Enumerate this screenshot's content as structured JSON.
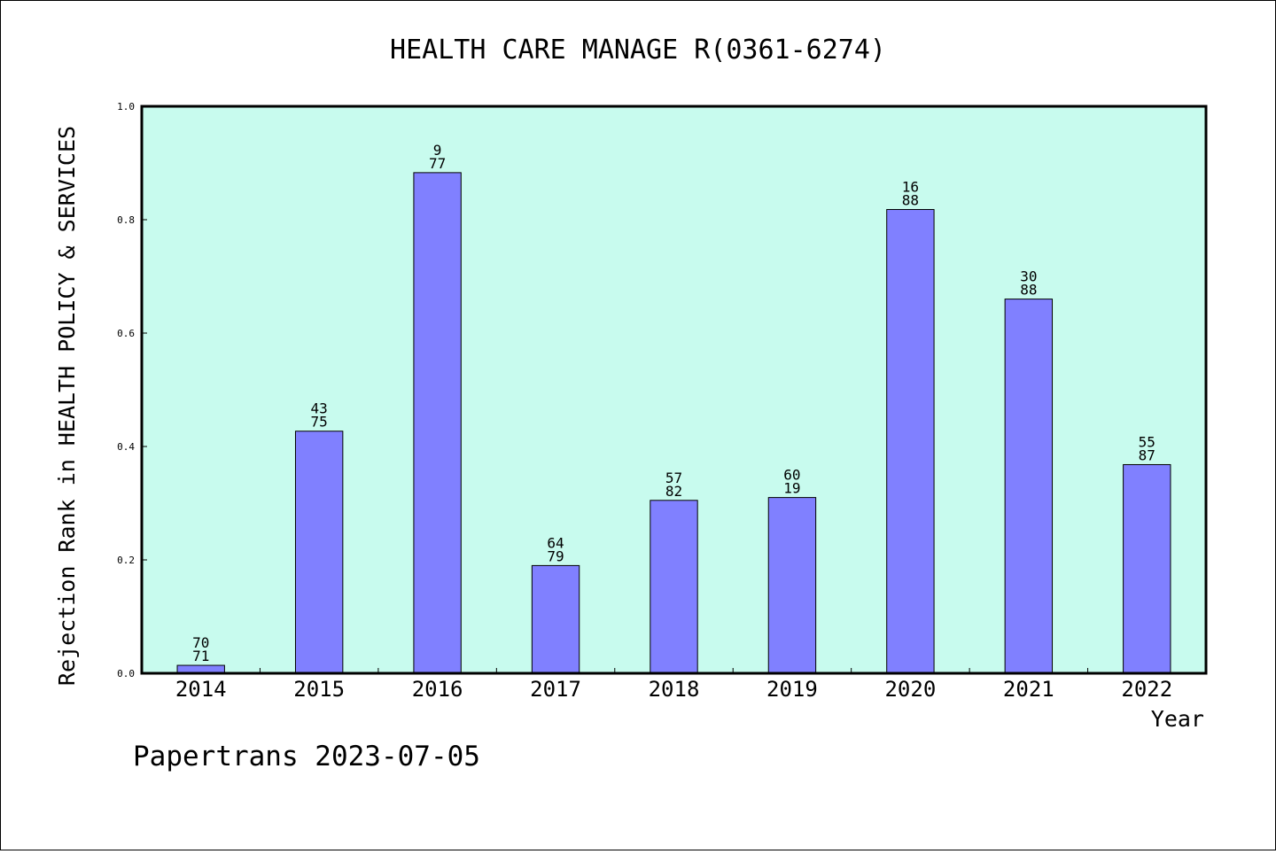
{
  "chart_data": {
    "type": "bar",
    "title": "HEALTH CARE MANAGE R(0361-6274)",
    "xlabel": "Year",
    "ylabel": "Rejection Rank in HEALTH POLICY & SERVICES",
    "footer": "Papertrans 2023-07-05",
    "categories": [
      "2014",
      "2015",
      "2016",
      "2017",
      "2018",
      "2019",
      "2020",
      "2021",
      "2022"
    ],
    "values": [
      0.014,
      0.427,
      0.883,
      0.19,
      0.305,
      0.31,
      0.818,
      0.66,
      0.368
    ],
    "labels": [
      [
        "70",
        "71"
      ],
      [
        "43",
        "75"
      ],
      [
        "9",
        "77"
      ],
      [
        "64",
        "79"
      ],
      [
        "57",
        "82"
      ],
      [
        "60",
        "19"
      ],
      [
        "16",
        "88"
      ],
      [
        "30",
        "88"
      ],
      [
        "55",
        "87"
      ]
    ],
    "ylim": [
      0,
      1
    ],
    "yticks": [
      "0.0",
      "0.2",
      "0.4",
      "0.6",
      "0.8",
      "1.0"
    ],
    "grid": false,
    "colors": {
      "plot_background": "#c8fbee",
      "bar_fill": "#8080ff",
      "bar_stroke": "#000000",
      "frame": "#000000"
    }
  }
}
